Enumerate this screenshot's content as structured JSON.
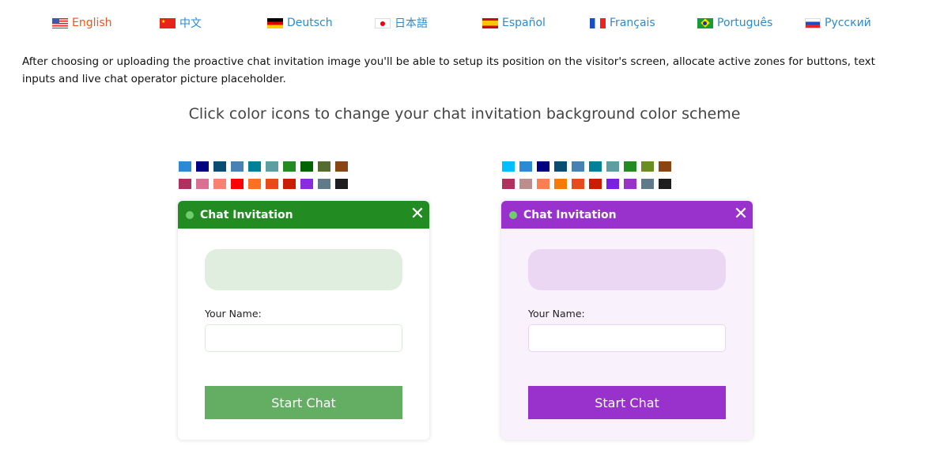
{
  "languages": [
    {
      "label": "English",
      "flag": "us",
      "active": true
    },
    {
      "label": "中文",
      "flag": "cn"
    },
    {
      "label": "Deutsch",
      "flag": "de"
    },
    {
      "label": "日本語",
      "flag": "jp"
    },
    {
      "label": "Español",
      "flag": "es"
    },
    {
      "label": "Français",
      "flag": "fr"
    },
    {
      "label": "Português",
      "flag": "br"
    },
    {
      "label": "Русский",
      "flag": "ru"
    }
  ],
  "intro": "After choosing or uploading the proactive chat invitation image you'll be able to setup its position on the visitor's screen, allocate active zones for buttons, text inputs and live chat operator picture placeholder.",
  "heading": "Click color icons to change your chat invitation background color scheme",
  "palettes": [
    [
      "#2a8ad4",
      "#000080",
      "#0a4d73",
      "#4682b4",
      "#008099",
      "#5f9ea0",
      "#228b22",
      "#006400",
      "#556b2f",
      "#8b4513",
      "#b03060",
      "#db7093",
      "#fa8072",
      "#ff0000",
      "#ff7020",
      "#e84a18",
      "#cc1c00",
      "#8a2be2",
      "#5f7b8a",
      "#1e1e1e"
    ],
    [
      "#00bfff",
      "#2a8ad4",
      "#000080",
      "#0a4d73",
      "#4682b4",
      "#008099",
      "#5f9ea0",
      "#228b22",
      "#6b8e23",
      "#8b4513",
      "#b03060",
      "#bc8f8f",
      "#ff7f50",
      "#f77b00",
      "#e84a18",
      "#cc1c00",
      "#7b20e0",
      "#9932cc",
      "#5f7b8a",
      "#1e1e1e"
    ]
  ],
  "cards": [
    {
      "title": "Chat Invitation",
      "name_label": "Your Name:",
      "button": "Start Chat",
      "colors": {
        "header": "#228b22",
        "body": "#ffffff",
        "placeholder": "#e0eee0",
        "input_border": "#d8ecd8",
        "button": "#64ae64"
      }
    },
    {
      "title": "Chat Invitation",
      "name_label": "Your Name:",
      "button": "Start Chat",
      "colors": {
        "header": "#9932cc",
        "body": "#f9f2fc",
        "placeholder": "#ebd6f4",
        "input_border": "#e8d4f2",
        "button": "#9932cc"
      }
    }
  ]
}
